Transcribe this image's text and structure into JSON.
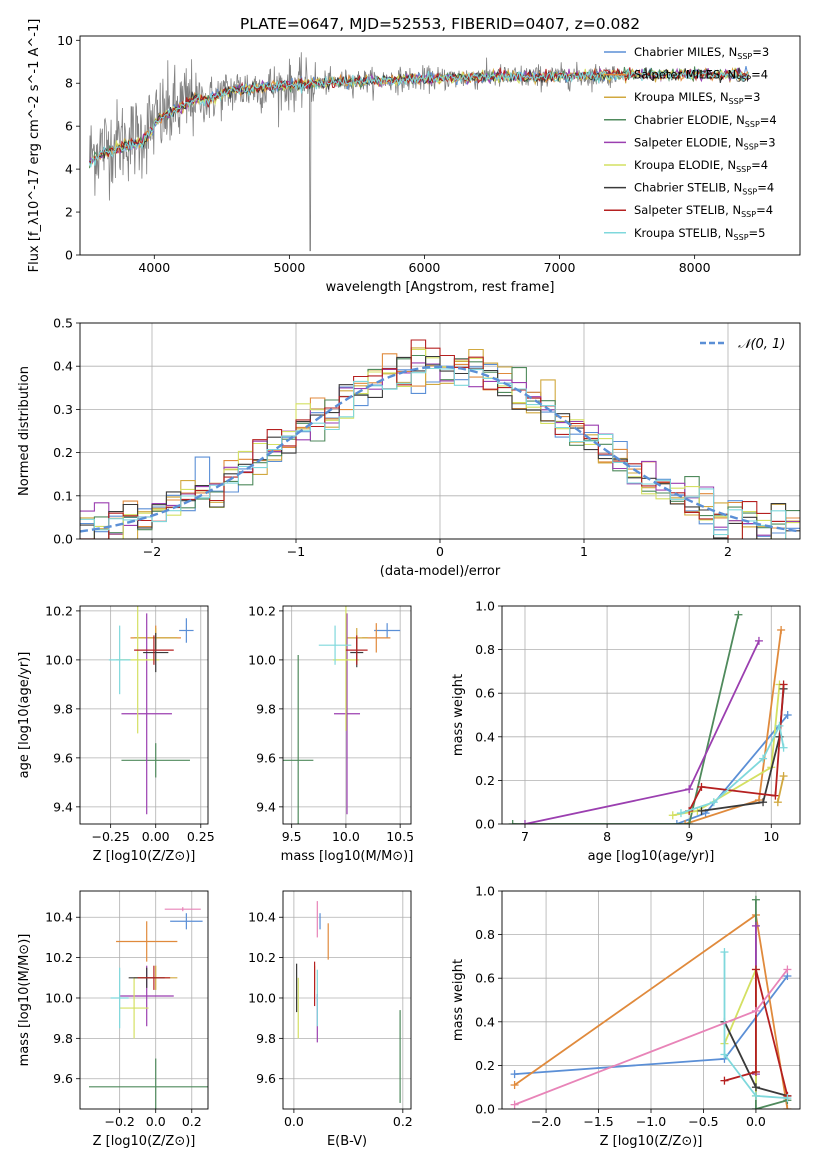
{
  "figure_title": "PLATE=0647, MJD=52553, FIBERID=0407, z=0.082",
  "series": [
    {
      "name": "Chabrier MILES",
      "nssp": "3",
      "color": "#5b8fd6"
    },
    {
      "name": "Salpeter MILES",
      "nssp": "4",
      "color": "#e08a3c"
    },
    {
      "name": "Kroupa MILES",
      "nssp": "3",
      "color": "#d1a83f"
    },
    {
      "name": "Chabrier ELODIE",
      "nssp": "4",
      "color": "#4f8a5c"
    },
    {
      "name": "Salpeter ELODIE",
      "nssp": "3",
      "color": "#9b3fb0"
    },
    {
      "name": "Kroupa ELODIE",
      "nssp": "4",
      "color": "#d4e062"
    },
    {
      "name": "Chabrier STELIB",
      "nssp": "4",
      "color": "#3a3a3a"
    },
    {
      "name": "Salpeter STELIB",
      "nssp": "4",
      "color": "#b52020"
    },
    {
      "name": "Kroupa STELIB",
      "nssp": "5",
      "color": "#7fd8dc"
    }
  ],
  "chart_data": [
    {
      "id": "spectrum",
      "type": "line",
      "xlabel": "wavelength [Angstrom, rest frame]",
      "ylabel": "Flux [f_λ10^-17 erg cm^-2 s^-1 A^-1]",
      "xlim": [
        3450,
        8780
      ],
      "ylim": [
        0,
        10.2
      ],
      "xticks": [
        4000,
        5000,
        6000,
        7000,
        8000
      ],
      "yticks": [
        0,
        2,
        4,
        6,
        8,
        10
      ],
      "legend": "right",
      "data_color": "#808080",
      "continuum": {
        "x": [
          3500,
          3600,
          3700,
          3800,
          3900,
          4000,
          4100,
          4200,
          4300,
          4400,
          4500,
          4600,
          4800,
          5000,
          5200,
          5500,
          6000,
          6500,
          7000,
          7400
        ],
        "y": [
          4.5,
          5.0,
          5.2,
          5.4,
          5.5,
          6.2,
          6.6,
          6.9,
          7.3,
          7.2,
          7.5,
          7.7,
          7.8,
          7.9,
          8.0,
          8.1,
          8.2,
          8.3,
          8.3,
          8.4
        ]
      },
      "grid": false
    },
    {
      "id": "residuals",
      "type": "histogram",
      "xlabel": "(data-model)/error",
      "ylabel": "Normed distribution",
      "xlim": [
        -2.5,
        2.5
      ],
      "ylim": [
        0,
        0.5
      ],
      "xticks": [
        -2,
        -1,
        0,
        1,
        2
      ],
      "yticks": [
        0,
        0.1,
        0.2,
        0.3,
        0.4,
        0.5
      ],
      "bin_width": 0.1,
      "reference": {
        "name": "𝒩(0, 1)",
        "color": "#5b8fd6"
      },
      "legend": "top-right",
      "grid": true
    },
    {
      "id": "age_vs_Z",
      "type": "errorbar",
      "xlabel": "Z [log10(Z/Z⊙)]",
      "ylabel": "age  [log10(age/yr)]",
      "xlim": [
        -0.42,
        0.29
      ],
      "ylim": [
        9.33,
        10.22
      ],
      "xticks": [
        -0.25,
        0.0,
        0.25
      ],
      "yticks": [
        9.4,
        9.6,
        9.8,
        10.0,
        10.2
      ],
      "points": [
        {
          "s": 0,
          "x": 0.17,
          "y": 10.12,
          "xe": 0.04,
          "ye": 0.05
        },
        {
          "s": 1,
          "x": 0.0,
          "y": 10.09,
          "xe": 0.14,
          "ye": 0.05
        },
        {
          "s": 2,
          "x": 0.0,
          "y": 10.09,
          "xe": 0.12,
          "ye": 0.04
        },
        {
          "s": 3,
          "x": 0.0,
          "y": 9.59,
          "xe": 0.19,
          "ye": 0.07
        },
        {
          "s": 4,
          "x": -0.05,
          "y": 9.78,
          "xe": 0.14,
          "ye": 0.41
        },
        {
          "s": 5,
          "x": -0.1,
          "y": 10.0,
          "xe": 0.12,
          "ye": 0.3
        },
        {
          "s": 6,
          "x": 0.0,
          "y": 10.03,
          "xe": 0.07,
          "ye": 0.08
        },
        {
          "s": 7,
          "x": -0.01,
          "y": 10.04,
          "xe": 0.11,
          "ye": 0.06
        },
        {
          "s": 8,
          "x": -0.2,
          "y": 10.0,
          "xe": 0.06,
          "ye": 0.14
        }
      ],
      "grid": true
    },
    {
      "id": "age_vs_mass",
      "type": "errorbar",
      "xlabel": "mass [log10(M/M⊙)]",
      "ylabel": "",
      "xlim": [
        9.42,
        10.6
      ],
      "ylim": [
        9.33,
        10.22
      ],
      "xticks": [
        9.5,
        10.0,
        10.5
      ],
      "yticks": [
        9.4,
        9.6,
        9.8,
        10.0,
        10.2
      ],
      "points": [
        {
          "s": 0,
          "x": 10.38,
          "y": 10.12,
          "xe": 0.12,
          "ye": 0.03
        },
        {
          "s": 1,
          "x": 10.28,
          "y": 10.09,
          "xe": 0.13,
          "ye": 0.06
        },
        {
          "s": 2,
          "x": 10.1,
          "y": 10.09,
          "xe": 0.1,
          "ye": 0.04
        },
        {
          "s": 3,
          "x": 9.56,
          "y": 9.59,
          "xe": 0.14,
          "ye": 0.43
        },
        {
          "s": 4,
          "x": 10.01,
          "y": 9.78,
          "xe": 0.12,
          "ye": 0.41
        },
        {
          "s": 5,
          "x": 10.0,
          "y": 10.0,
          "xe": 0.12,
          "ye": 0.29
        },
        {
          "s": 6,
          "x": 10.1,
          "y": 10.03,
          "xe": 0.06,
          "ye": 0.06
        },
        {
          "s": 7,
          "x": 10.1,
          "y": 10.04,
          "xe": 0.1,
          "ye": 0.06
        },
        {
          "s": 8,
          "x": 9.9,
          "y": 10.06,
          "xe": 0.15,
          "ye": 0.08
        }
      ],
      "grid": true
    },
    {
      "id": "weight_vs_age",
      "type": "line",
      "xlabel": "age  [log10(age/yr)]",
      "ylabel": "mass weight",
      "xlim": [
        6.72,
        10.35
      ],
      "ylim": [
        0,
        1.0
      ],
      "xticks": [
        7,
        8,
        9,
        10
      ],
      "yticks": [
        0,
        0.2,
        0.4,
        0.6,
        0.8,
        1.0
      ],
      "series": [
        {
          "s": 0,
          "x": [
            8.85,
            9.2,
            10.2
          ],
          "y": [
            0.0,
            0.05,
            0.5
          ]
        },
        {
          "s": 1,
          "x": [
            8.95,
            9.85,
            10.12
          ],
          "y": [
            0.0,
            0.11,
            0.89
          ]
        },
        {
          "s": 3,
          "x": [
            6.85,
            9.0,
            9.6
          ],
          "y": [
            0.0,
            0.0,
            0.96
          ]
        },
        {
          "s": 4,
          "x": [
            7.0,
            9.0,
            9.85
          ],
          "y": [
            0.0,
            0.16,
            0.84
          ]
        },
        {
          "s": 5,
          "x": [
            8.8,
            9.1,
            10.0,
            10.1
          ],
          "y": [
            0.04,
            0.06,
            0.26,
            0.64
          ]
        },
        {
          "s": 6,
          "x": [
            9.15,
            9.9,
            10.1,
            10.15
          ],
          "y": [
            0.06,
            0.1,
            0.4,
            0.62
          ]
        },
        {
          "s": 7,
          "x": [
            9.0,
            9.15,
            10.05,
            10.15
          ],
          "y": [
            0.06,
            0.17,
            0.13,
            0.64
          ]
        },
        {
          "s": 8,
          "x": [
            8.9,
            9.3,
            9.9,
            10.1,
            10.15
          ],
          "y": [
            0.05,
            0.1,
            0.3,
            0.45,
            0.35
          ]
        },
        {
          "s": 2,
          "x": [
            10.08,
            10.15
          ],
          "y": [
            0.1,
            0.22
          ]
        }
      ],
      "grid": true
    },
    {
      "id": "mass_vs_Z",
      "type": "errorbar",
      "xlabel": "Z [log10(Z/Z⊙)]",
      "ylabel": "mass [log10(M/M⊙)]",
      "xlim": [
        -0.42,
        0.29
      ],
      "ylim": [
        9.45,
        10.53
      ],
      "xticks": [
        -0.2,
        0.0,
        0.2
      ],
      "yticks": [
        9.6,
        9.8,
        10.0,
        10.2,
        10.4
      ],
      "points": [
        {
          "s": 0,
          "x": 0.17,
          "y": 10.38,
          "xe": 0.09,
          "ye": 0.04
        },
        {
          "s": 1,
          "x": -0.05,
          "y": 10.28,
          "xe": 0.17,
          "ye": 0.1
        },
        {
          "s": 2,
          "x": 0.0,
          "y": 10.1,
          "xe": 0.12,
          "ye": 0.06
        },
        {
          "s": 3,
          "x": 0.0,
          "y": 9.56,
          "xe": 0.37,
          "ye": 0.14
        },
        {
          "s": 4,
          "x": -0.05,
          "y": 10.01,
          "xe": 0.15,
          "ye": 0.15
        },
        {
          "s": 5,
          "x": -0.12,
          "y": 9.95,
          "xe": 0.08,
          "ye": 0.15
        },
        {
          "s": 6,
          "x": -0.05,
          "y": 10.1,
          "xe": 0.1,
          "ye": 0.05
        },
        {
          "s": 7,
          "x": -0.01,
          "y": 10.1,
          "xe": 0.09,
          "ye": 0.06
        },
        {
          "s": 8,
          "x": -0.2,
          "y": 10.0,
          "xe": 0.05,
          "ye": 0.15
        },
        {
          "s": 9,
          "x": 0.15,
          "y": 10.44,
          "xe": 0.1,
          "ye": 0.01
        }
      ],
      "grid": true
    },
    {
      "id": "mass_vs_ebv",
      "type": "errorbar",
      "xlabel": "E(B-V)",
      "ylabel": "",
      "xlim": [
        -0.02,
        0.215
      ],
      "ylim": [
        9.45,
        10.53
      ],
      "xticks": [
        0.0,
        0.2
      ],
      "yticks": [
        9.6,
        9.8,
        10.0,
        10.2,
        10.4
      ],
      "points": [
        {
          "s": 0,
          "x": 0.048,
          "y": 10.38,
          "xe": 0.0,
          "ye": 0.04
        },
        {
          "s": 1,
          "x": 0.063,
          "y": 10.28,
          "xe": 0.0,
          "ye": 0.09
        },
        {
          "s": 2,
          "x": 0.038,
          "y": 10.1,
          "xe": 0.0,
          "ye": 0.06
        },
        {
          "s": 3,
          "x": 0.195,
          "y": 9.71,
          "xe": 0.0,
          "ye": 0.23
        },
        {
          "s": 4,
          "x": 0.043,
          "y": 9.9,
          "xe": 0.0,
          "ye": 0.12
        },
        {
          "s": 5,
          "x": 0.008,
          "y": 9.95,
          "xe": 0.0,
          "ye": 0.15
        },
        {
          "s": 6,
          "x": 0.005,
          "y": 10.05,
          "xe": 0.0,
          "ye": 0.12
        },
        {
          "s": 7,
          "x": 0.038,
          "y": 10.07,
          "xe": 0.0,
          "ye": 0.11
        },
        {
          "s": 8,
          "x": 0.043,
          "y": 10.0,
          "xe": 0.0,
          "ye": 0.14
        },
        {
          "s": 9,
          "x": 0.043,
          "y": 10.39,
          "xe": 0.0,
          "ye": 0.09
        }
      ],
      "grid": true
    },
    {
      "id": "weight_vs_Z",
      "type": "line",
      "xlabel": "Z [log10(Z/Z⊙)]",
      "ylabel": "mass weight",
      "xlim": [
        -2.42,
        0.42
      ],
      "ylim": [
        0,
        1.0
      ],
      "xticks": [
        -2.0,
        -1.5,
        -1.0,
        -0.5,
        0.0
      ],
      "yticks": [
        0,
        0.2,
        0.4,
        0.6,
        0.8,
        1.0
      ],
      "series": [
        {
          "s": 0,
          "x": [
            -2.3,
            -0.3,
            0.3
          ],
          "y": [
            0.16,
            0.23,
            0.61
          ]
        },
        {
          "s": 1,
          "x": [
            -2.3,
            0.0,
            0.3
          ],
          "y": [
            0.11,
            0.89,
            0.0
          ]
        },
        {
          "s": 3,
          "x": [
            0.0,
            0.0,
            0.3
          ],
          "y": [
            0.96,
            0.0,
            0.04
          ]
        },
        {
          "s": 4,
          "x": [
            0.0,
            0.0
          ],
          "y": [
            0.84,
            0.16
          ]
        },
        {
          "s": 5,
          "x": [
            -0.3,
            0.0,
            0.0
          ],
          "y": [
            0.3,
            0.64,
            0.06
          ]
        },
        {
          "s": 6,
          "x": [
            -0.3,
            0.0,
            0.3
          ],
          "y": [
            0.4,
            0.1,
            0.06
          ]
        },
        {
          "s": 7,
          "x": [
            -0.3,
            0.0,
            0.0,
            0.3
          ],
          "y": [
            0.13,
            0.17,
            0.64,
            0.06
          ]
        },
        {
          "s": 8,
          "x": [
            -0.3,
            -0.3,
            0.0,
            0.3
          ],
          "y": [
            0.72,
            0.25,
            0.06,
            0.05
          ]
        },
        {
          "s": 9,
          "x": [
            -2.3,
            0.0,
            0.3
          ],
          "y": [
            0.02,
            0.45,
            0.64
          ]
        }
      ],
      "grid": true
    }
  ]
}
